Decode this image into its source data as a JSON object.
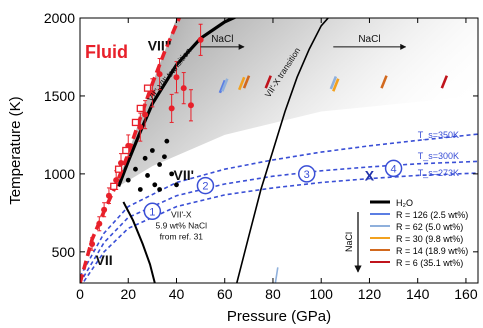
{
  "chart_data": {
    "type": "scatter",
    "xlabel": "Pressure (GPa)",
    "ylabel": "Temperature (K)",
    "xlim": [
      0,
      165
    ],
    "ylim": [
      300,
      2000
    ],
    "xticks": [
      0,
      20,
      40,
      60,
      80,
      100,
      120,
      140,
      160
    ],
    "yticks": [
      500,
      1000,
      1500,
      2000
    ],
    "phase_labels": [
      {
        "text": "Fluid",
        "x": 11,
        "y": 1745,
        "color": "#e8202a",
        "size": 18
      },
      {
        "text": "VII''",
        "x": 33,
        "y": 1790,
        "color": "#111111",
        "size": 14
      },
      {
        "text": "VII'",
        "x": 43,
        "y": 960,
        "color": "#111111",
        "size": 14
      },
      {
        "text": "VII",
        "x": 10,
        "y": 415,
        "color": "#111111",
        "size": 14
      }
    ],
    "transition_labels": [
      {
        "text": "VII''-VII' transition",
        "x": 38,
        "y": 1625,
        "rotate": -52
      },
      {
        "text": "VII'-X transition",
        "x": 85,
        "y": 1640,
        "rotate": -57
      }
    ],
    "nacl_arrows": [
      {
        "label": "NaCl",
        "x1": 50,
        "x2": 68,
        "y": 1815
      },
      {
        "label": "NaCl",
        "x1": 105,
        "x2": 135,
        "y": 1815
      }
    ],
    "isentropes": [
      {
        "label": "T_s=350K",
        "label_x": 140,
        "label_y": 1230,
        "points": [
          [
            0,
            340
          ],
          [
            10,
            620
          ],
          [
            20,
            790
          ],
          [
            40,
            945
          ],
          [
            60,
            1030
          ],
          [
            80,
            1090
          ],
          [
            100,
            1140
          ],
          [
            120,
            1180
          ],
          [
            140,
            1215
          ],
          [
            165,
            1255
          ]
        ]
      },
      {
        "label": "T_s=300K",
        "label_x": 140,
        "label_y": 1095,
        "points": [
          [
            0,
            300
          ],
          [
            10,
            560
          ],
          [
            20,
            720
          ],
          [
            40,
            860
          ],
          [
            60,
            935
          ],
          [
            80,
            985
          ],
          [
            100,
            1020
          ],
          [
            120,
            1045
          ],
          [
            140,
            1065
          ],
          [
            165,
            1080
          ]
        ]
      },
      {
        "label": "T_s=273K",
        "label_x": 140,
        "label_y": 985,
        "points": [
          [
            0,
            273
          ],
          [
            10,
            500
          ],
          [
            20,
            650
          ],
          [
            40,
            790
          ],
          [
            60,
            865
          ],
          [
            80,
            910
          ],
          [
            100,
            945
          ],
          [
            120,
            970
          ],
          [
            140,
            990
          ],
          [
            165,
            1005
          ]
        ]
      }
    ],
    "markers": [
      {
        "text": "1",
        "type": "circle",
        "x": 30,
        "y": 760
      },
      {
        "text": "2",
        "type": "circle",
        "x": 52,
        "y": 925
      },
      {
        "text": "3",
        "type": "circle",
        "x": 94,
        "y": 1000
      },
      {
        "text": "X",
        "type": "letter",
        "x": 120,
        "y": 990
      },
      {
        "text": "4",
        "type": "circle",
        "x": 130,
        "y": 1035
      }
    ],
    "melting_curve_red": [
      [
        0,
        300
      ],
      [
        5,
        580
      ],
      [
        10,
        760
      ],
      [
        15,
        930
      ],
      [
        20,
        1130
      ],
      [
        25,
        1360
      ],
      [
        30,
        1580
      ],
      [
        35,
        1780
      ],
      [
        40,
        1960
      ],
      [
        42,
        2030
      ]
    ],
    "boundary_vii_vii_prime": [
      [
        18,
        820
      ],
      [
        22,
        700
      ],
      [
        26,
        550
      ],
      [
        29,
        420
      ],
      [
        31,
        300
      ]
    ],
    "boundary_vii_prime_vii_dprime": [
      [
        16,
        920
      ],
      [
        20,
        1080
      ],
      [
        25,
        1270
      ],
      [
        30,
        1450
      ],
      [
        40,
        1700
      ],
      [
        50,
        1870
      ],
      [
        60,
        1975
      ],
      [
        65,
        2010
      ]
    ],
    "boundary_vii_prime_x": [
      [
        65,
        300
      ],
      [
        70,
        600
      ],
      [
        75,
        900
      ],
      [
        80,
        1150
      ],
      [
        85,
        1400
      ],
      [
        90,
        1620
      ],
      [
        95,
        1800
      ],
      [
        100,
        1950
      ],
      [
        104,
        2020
      ]
    ],
    "red_data": [
      {
        "x": 5,
        "y": 550,
        "ey": 40
      },
      {
        "x": 8,
        "y": 680,
        "ey": 45
      },
      {
        "x": 10,
        "y": 770,
        "ey": 45
      },
      {
        "x": 12,
        "y": 860,
        "ey": 50
      },
      {
        "x": 15,
        "y": 960,
        "ey": 60
      },
      {
        "x": 17,
        "y": 1070,
        "ey": 60
      },
      {
        "x": 20,
        "y": 1180,
        "ey": 70
      },
      {
        "x": 25,
        "y": 1300,
        "ey": 90
      },
      {
        "x": 27,
        "y": 1380,
        "ey": 90
      },
      {
        "x": 30,
        "y": 1520,
        "ey": 90
      },
      {
        "x": 33,
        "y": 1640,
        "ey": 100
      },
      {
        "x": 38,
        "y": 1420,
        "ey": 90
      },
      {
        "x": 40,
        "y": 1620,
        "ey": 100
      },
      {
        "x": 43,
        "y": 1550,
        "ey": 100
      },
      {
        "x": 46,
        "y": 1440,
        "ey": 100
      },
      {
        "x": 50,
        "y": 1860,
        "ey": 100
      }
    ],
    "red_squares": [
      {
        "x": 14,
        "y": 920
      },
      {
        "x": 16,
        "y": 1030
      },
      {
        "x": 19,
        "y": 1150
      },
      {
        "x": 23,
        "y": 1330
      },
      {
        "x": 25,
        "y": 1420
      },
      {
        "x": 28,
        "y": 1550
      }
    ],
    "black_points": [
      {
        "x": 20,
        "y": 960
      },
      {
        "x": 23,
        "y": 1030
      },
      {
        "x": 25,
        "y": 900
      },
      {
        "x": 27,
        "y": 1100
      },
      {
        "x": 28,
        "y": 990
      },
      {
        "x": 30,
        "y": 1150
      },
      {
        "x": 31,
        "y": 930
      },
      {
        "x": 33,
        "y": 1060
      },
      {
        "x": 35,
        "y": 1110
      },
      {
        "x": 36,
        "y": 1210
      },
      {
        "x": 38,
        "y": 1000
      },
      {
        "x": 40,
        "y": 930
      },
      {
        "x": 33,
        "y": 900
      }
    ],
    "legend": {
      "title": "H₂O",
      "items": [
        {
          "label": "R = 126 (2.5 wt%)",
          "color": "#5b7ee3"
        },
        {
          "label": "R = 62 (5.0 wt%)",
          "color": "#8fb0dc"
        },
        {
          "label": "R = 30 (9.8 wt%)",
          "color": "#f2a11f"
        },
        {
          "label": "R = 14 (18.9 wt%)",
          "color": "#d2691e"
        },
        {
          "label": "R = 6 (35.1 wt%)",
          "color": "#c0141c"
        }
      ],
      "arrow_label": "NaCl"
    },
    "salt_segments": [
      {
        "color": "#5b7ee3",
        "x": 58,
        "y": 1560
      },
      {
        "color": "#8fb0dc",
        "x": 59,
        "y": 1570
      },
      {
        "color": "#f2a11f",
        "x": 66,
        "y": 1580
      },
      {
        "color": "#d2691e",
        "x": 68,
        "y": 1590
      },
      {
        "color": "#c0141c",
        "x": 77,
        "y": 1590
      },
      {
        "color": "#8fb0dc",
        "x": 104,
        "y": 1585
      },
      {
        "color": "#f2a11f",
        "x": 105,
        "y": 1570
      },
      {
        "color": "#d2691e",
        "x": 125,
        "y": 1590
      },
      {
        "color": "#c0141c",
        "x": 150,
        "y": 1590
      }
    ],
    "annotation": {
      "lines": [
        "VII'-X",
        "5.9 wt% NaCl",
        "from ref. 31"
      ],
      "x": 42,
      "y": 720
    },
    "blue_small_line": {
      "x": 82,
      "y1": 300,
      "y2": 400
    }
  }
}
